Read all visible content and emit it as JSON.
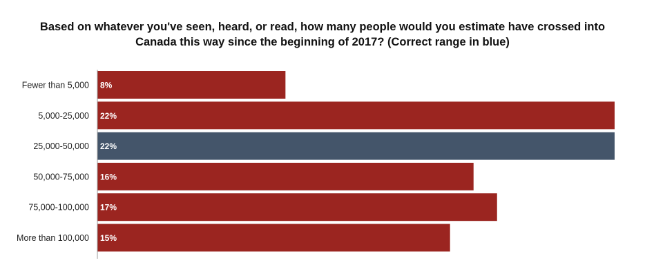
{
  "chart_data": {
    "type": "bar",
    "orientation": "horizontal",
    "title_lines": [
      "Based on whatever you've seen, heard, or read, how many people would you estimate have crossed into",
      "Canada this way since the beginning of 2017? (Correct range in blue)"
    ],
    "categories": [
      "Fewer than 5,000",
      "5,000-25,000",
      "25,000-50,000",
      "50,000-75,000",
      "75,000-100,000",
      "More than 100,000"
    ],
    "values": [
      8,
      22,
      22,
      16,
      17,
      15
    ],
    "value_labels": [
      "8%",
      "22%",
      "22%",
      "16%",
      "17%",
      "15%"
    ],
    "highlight_index": 2,
    "xlim": [
      0,
      22
    ],
    "grid": false,
    "legend": "none",
    "colors": {
      "bar": "#9B2520",
      "highlight": "#44556A",
      "axis": "#999999"
    }
  }
}
